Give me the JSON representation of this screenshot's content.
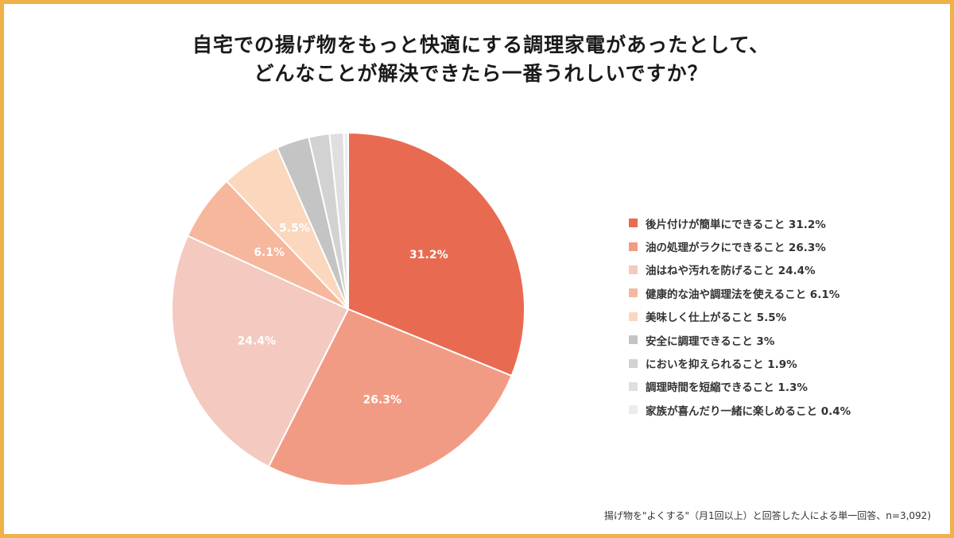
{
  "title": {
    "line1": "自宅での揚げ物をもっと快適にする調理家電があったとして、",
    "line2": "どんなことが解決できたら一番うれしいですか？"
  },
  "chart_data": {
    "type": "pie",
    "title": "自宅での揚げ物をもっと快適にする調理家電があったとして、どんなことが解決できたら一番うれしいですか？",
    "slices": [
      {
        "label": "後片付けが簡単にできること 31.2%",
        "value": 31.2,
        "data_label": "31.2%",
        "color": "#e86b51"
      },
      {
        "label": "油の処理がラクにできること 26.3%",
        "value": 26.3,
        "data_label": "26.3%",
        "color": "#f29b84"
      },
      {
        "label": "油はねや汚れを防げること 24.4%",
        "value": 24.4,
        "data_label": "24.4%",
        "color": "#f3c9c0"
      },
      {
        "label": "健康的な油や調理法を使えること 6.1%",
        "value": 6.1,
        "data_label": "6.1%",
        "color": "#f6b79c"
      },
      {
        "label": "美味しく仕上がること 5.5%",
        "value": 5.5,
        "data_label": "5.5%",
        "color": "#fbd7bd"
      },
      {
        "label": "安全に調理できること 3%",
        "value": 3.0,
        "data_label": "",
        "color": "#c4c4c4"
      },
      {
        "label": "においを抑えられること 1.9%",
        "value": 1.9,
        "data_label": "",
        "color": "#d2d2d2"
      },
      {
        "label": "調理時間を短縮できること 1.3%",
        "value": 1.3,
        "data_label": "",
        "color": "#dfdfdf"
      },
      {
        "label": "家族が喜んだり一緒に楽しめること 0.4%",
        "value": 0.4,
        "data_label": "",
        "color": "#ececec"
      }
    ],
    "legend_position": "right"
  },
  "footnote": "揚げ物を\"よくする\"（月1回以上）と回答した人による単一回答、n=3,092)"
}
